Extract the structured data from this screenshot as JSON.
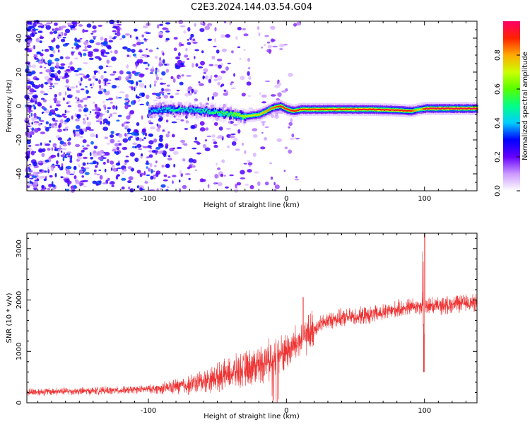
{
  "title": "C2E3.2024.144.03.54.G04",
  "chart_data": [
    {
      "type": "heatmap",
      "xlabel": "Height of straight line (km)",
      "ylabel": "Frequency (Hz)",
      "xlim": [
        -188,
        138
      ],
      "ylim": [
        -50,
        50
      ],
      "xticks": [
        -100,
        0,
        100
      ],
      "yticks": [
        -40,
        -20,
        0,
        20,
        40
      ],
      "colorbar": {
        "label": "Normalized spectral amplitude",
        "range": [
          0,
          1
        ],
        "ticks": [
          0.0,
          0.2,
          0.4,
          0.6,
          0.8
        ],
        "colors": [
          "#ffffff",
          "#cc99ff",
          "#6600ff",
          "#0000ff",
          "#00ccff",
          "#00ff88",
          "#55ff00",
          "#ccff00",
          "#ffaa00",
          "#ff2200",
          "#ff0066"
        ]
      },
      "trace": {
        "x": [
          -100,
          -90,
          -80,
          -70,
          -60,
          -50,
          -40,
          -30,
          -20,
          -15,
          -10,
          -5,
          0,
          5,
          10,
          20,
          40,
          60,
          80,
          90,
          96,
          100,
          110,
          120,
          138
        ],
        "freq": [
          -3,
          -2,
          -2,
          -2.5,
          -3,
          -4,
          -5,
          -6,
          -5,
          -3,
          -1,
          0,
          -2,
          -3,
          -2,
          -2,
          -2,
          -2,
          -2.5,
          -3,
          -2,
          -1.5,
          -1.5,
          -1.5,
          -1.5
        ],
        "amplitude": [
          0.4,
          0.45,
          0.5,
          0.45,
          0.5,
          0.55,
          0.6,
          0.7,
          0.75,
          0.8,
          0.85,
          0.9,
          0.9,
          0.9,
          0.92,
          0.92,
          0.93,
          0.93,
          0.93,
          0.9,
          0.7,
          0.95,
          0.97,
          0.97,
          0.97
        ]
      },
      "noise_region": {
        "x_range": [
          -188,
          -40
        ],
        "amplitude_range": [
          0.05,
          0.35
        ]
      }
    },
    {
      "type": "line",
      "xlabel": "Height of straight line (km)",
      "ylabel": "SNR (10 * v/v)",
      "xlim": [
        -188,
        138
      ],
      "ylim": [
        0,
        3300
      ],
      "xticks": [
        -100,
        0,
        100
      ],
      "yticks": [
        0,
        1000,
        2000,
        3000
      ],
      "color": "#ee3333",
      "baseline": {
        "x": [
          -188,
          -120,
          -90,
          -70,
          -50,
          -30,
          -15,
          0,
          10,
          20,
          30,
          40,
          60,
          70,
          80,
          90,
          100,
          110,
          120,
          138
        ],
        "y": [
          210,
          240,
          280,
          350,
          500,
          650,
          800,
          1000,
          1200,
          1450,
          1600,
          1650,
          1700,
          1750,
          1820,
          1870,
          1900,
          1880,
          1920,
          1950
        ]
      },
      "spikes": [
        {
          "x": 100,
          "y": 3300
        },
        {
          "x": 99.5,
          "y": 600
        },
        {
          "x": -7,
          "y": 0
        },
        {
          "x": 12,
          "y": 2050
        }
      ]
    }
  ]
}
